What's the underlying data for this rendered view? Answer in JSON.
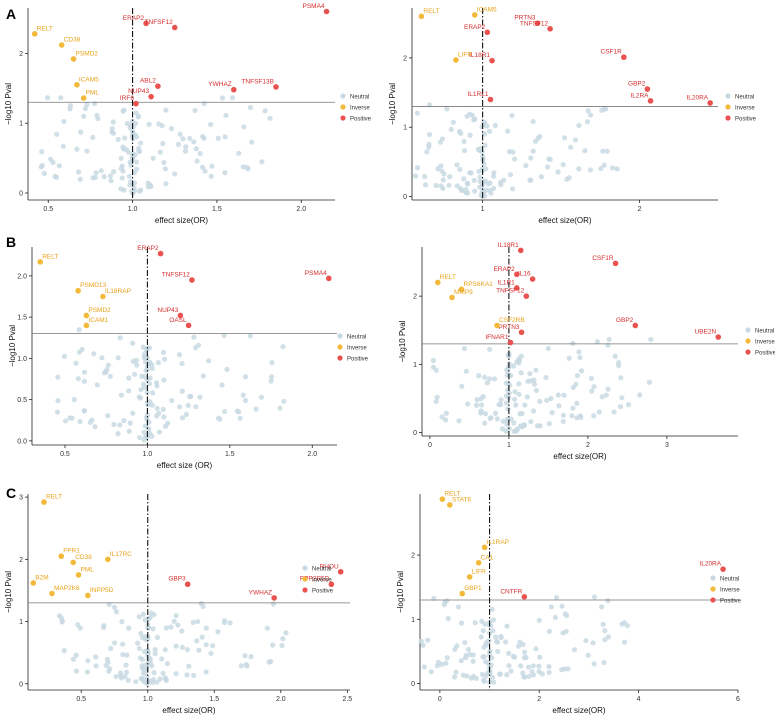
{
  "colors": {
    "neutral": "#c9d9e3",
    "inverse": "#f2b93b",
    "positive": "#e9524f",
    "inverse_label": "#e8a21a",
    "positive_label": "#d62d2d"
  },
  "panel_labels": [
    "A",
    "B",
    "C"
  ],
  "legend": {
    "neutral": "Neutral",
    "inverse": "Inverse",
    "positive": "Positive"
  },
  "chart_data": [
    {
      "type": "scatter",
      "id": "A-left",
      "panel": "A",
      "xlabel": "effect size(OR)",
      "ylabel": "−log10 Pval",
      "xlim": [
        0.38,
        2.2
      ],
      "ylim": [
        -0.1,
        2.65
      ],
      "xticks": [
        "0.5",
        "1.0",
        "1.5",
        "2.0"
      ],
      "xtick_values": [
        0.5,
        1.0,
        1.5,
        2.0
      ],
      "yticks": [
        "0",
        "1",
        "2"
      ],
      "ytick_values": [
        0,
        1,
        2
      ],
      "threshold_y": 1.3,
      "ref_x": 1.0,
      "points": [
        {
          "x": 2.15,
          "y": 2.6,
          "label": "PSMA4",
          "cls": "positive"
        },
        {
          "x": 1.08,
          "y": 2.43,
          "label": "ERAP2",
          "cls": "positive"
        },
        {
          "x": 1.25,
          "y": 2.37,
          "label": "TNFSF12",
          "cls": "positive"
        },
        {
          "x": 1.15,
          "y": 1.53,
          "label": "ABL2",
          "cls": "positive"
        },
        {
          "x": 1.6,
          "y": 1.48,
          "label": "YWHAZ",
          "cls": "positive"
        },
        {
          "x": 1.85,
          "y": 1.52,
          "label": "TNFSF13B",
          "cls": "positive"
        },
        {
          "x": 1.11,
          "y": 1.38,
          "label": "NUP43",
          "cls": "positive"
        },
        {
          "x": 1.02,
          "y": 1.28,
          "label": "IRF6",
          "cls": "positive"
        },
        {
          "x": 0.42,
          "y": 2.28,
          "label": "RELT",
          "cls": "inverse"
        },
        {
          "x": 0.58,
          "y": 2.12,
          "label": "CD38",
          "cls": "inverse"
        },
        {
          "x": 0.65,
          "y": 1.92,
          "label": "PSMD2",
          "cls": "inverse"
        },
        {
          "x": 0.67,
          "y": 1.55,
          "label": "ICAM5",
          "cls": "inverse"
        },
        {
          "x": 0.71,
          "y": 1.36,
          "label": "PML",
          "cls": "inverse"
        }
      ]
    },
    {
      "type": "scatter",
      "id": "A-right",
      "panel": "A",
      "xlabel": "effect size(OR)",
      "ylabel": "−log10 Pval",
      "xlim": [
        0.55,
        2.5
      ],
      "ylim": [
        -0.05,
        2.72
      ],
      "xticks": [
        "1",
        "2"
      ],
      "xtick_values": [
        1,
        2
      ],
      "yticks": [
        "0",
        "1",
        "2"
      ],
      "ytick_values": [
        0,
        1,
        2
      ],
      "threshold_y": 1.3,
      "ref_x": 1.0,
      "points": [
        {
          "x": 1.35,
          "y": 2.5,
          "label": "PRTN3",
          "cls": "positive"
        },
        {
          "x": 1.43,
          "y": 2.42,
          "label": "TNFSF12",
          "cls": "positive"
        },
        {
          "x": 1.03,
          "y": 2.37,
          "label": "ERAP2",
          "cls": "positive"
        },
        {
          "x": 1.06,
          "y": 1.96,
          "label": "IL18R1",
          "cls": "positive"
        },
        {
          "x": 1.9,
          "y": 2.01,
          "label": "CSF1R",
          "cls": "positive"
        },
        {
          "x": 1.05,
          "y": 1.4,
          "label": "IL1RL1",
          "cls": "positive"
        },
        {
          "x": 2.05,
          "y": 1.55,
          "label": "GBP2",
          "cls": "positive"
        },
        {
          "x": 2.07,
          "y": 1.38,
          "label": "IL2RA",
          "cls": "positive"
        },
        {
          "x": 2.45,
          "y": 1.35,
          "label": "IL20RA",
          "cls": "positive"
        },
        {
          "x": 0.61,
          "y": 2.6,
          "label": "RELT",
          "cls": "inverse"
        },
        {
          "x": 0.95,
          "y": 2.62,
          "label": "ICAM5",
          "cls": "inverse"
        },
        {
          "x": 0.83,
          "y": 1.97,
          "label": "LIFR",
          "cls": "inverse"
        }
      ]
    },
    {
      "type": "scatter",
      "id": "B-left",
      "panel": "B",
      "xlabel": "effect size (OR)",
      "ylabel": "−log10 Pval",
      "xlim": [
        0.3,
        2.15
      ],
      "ylim": [
        -0.05,
        2.35
      ],
      "xticks": [
        "0.5",
        "1.0",
        "1.5",
        "2.0"
      ],
      "xtick_values": [
        0.5,
        1.0,
        1.5,
        2.0
      ],
      "yticks": [
        "0.0",
        "0.5",
        "1.0",
        "1.5",
        "2.0"
      ],
      "ytick_values": [
        0,
        0.5,
        1.0,
        1.5,
        2.0
      ],
      "threshold_y": 1.3,
      "ref_x": 1.0,
      "points": [
        {
          "x": 1.08,
          "y": 2.27,
          "label": "ERAP2",
          "cls": "positive"
        },
        {
          "x": 1.27,
          "y": 1.95,
          "label": "TNFSF12",
          "cls": "positive"
        },
        {
          "x": 2.1,
          "y": 1.97,
          "label": "PSMA4",
          "cls": "positive"
        },
        {
          "x": 1.2,
          "y": 1.52,
          "label": "NUP43",
          "cls": "positive"
        },
        {
          "x": 1.25,
          "y": 1.4,
          "label": "OASL",
          "cls": "positive"
        },
        {
          "x": 0.35,
          "y": 2.17,
          "label": "RELT",
          "cls": "inverse"
        },
        {
          "x": 0.58,
          "y": 1.82,
          "label": "PSMD13",
          "cls": "inverse"
        },
        {
          "x": 0.73,
          "y": 1.75,
          "label": "IL18RAP",
          "cls": "inverse"
        },
        {
          "x": 0.63,
          "y": 1.52,
          "label": "PSMD2",
          "cls": "inverse"
        },
        {
          "x": 0.63,
          "y": 1.4,
          "label": "ICAM1",
          "cls": "inverse"
        }
      ]
    },
    {
      "type": "scatter",
      "id": "B-right",
      "panel": "B",
      "xlabel": "effect size(OR)",
      "ylabel": "−log10 Pval",
      "xlim": [
        -0.1,
        3.9
      ],
      "ylim": [
        -0.05,
        2.72
      ],
      "xticks": [
        "0",
        "1",
        "2",
        "3"
      ],
      "xtick_values": [
        0,
        1,
        2,
        3
      ],
      "yticks": [
        "0",
        "1",
        "2"
      ],
      "ytick_values": [
        0,
        1,
        2
      ],
      "threshold_y": 1.3,
      "ref_x": 1.0,
      "points": [
        {
          "x": 1.15,
          "y": 2.67,
          "label": "IL18R1",
          "cls": "positive"
        },
        {
          "x": 2.35,
          "y": 2.48,
          "label": "CSF1R",
          "cls": "positive"
        },
        {
          "x": 1.1,
          "y": 2.32,
          "label": "ERAP2",
          "cls": "positive"
        },
        {
          "x": 1.3,
          "y": 2.25,
          "label": "IL16",
          "cls": "positive"
        },
        {
          "x": 1.1,
          "y": 2.12,
          "label": "IL1R1",
          "cls": "positive"
        },
        {
          "x": 1.22,
          "y": 2.0,
          "label": "TNFSF12",
          "cls": "positive"
        },
        {
          "x": 2.6,
          "y": 1.57,
          "label": "GBP2",
          "cls": "positive"
        },
        {
          "x": 1.16,
          "y": 1.47,
          "label": "PRTN3",
          "cls": "positive"
        },
        {
          "x": 3.65,
          "y": 1.4,
          "label": "UBE2N",
          "cls": "positive"
        },
        {
          "x": 1.02,
          "y": 1.32,
          "label": "IFNAR1",
          "cls": "positive"
        },
        {
          "x": 0.1,
          "y": 2.2,
          "label": "RELT",
          "cls": "inverse"
        },
        {
          "x": 0.4,
          "y": 2.1,
          "label": "RPS6KA1",
          "cls": "inverse"
        },
        {
          "x": 0.28,
          "y": 1.98,
          "label": "MMP9",
          "cls": "inverse"
        },
        {
          "x": 0.85,
          "y": 1.57,
          "label": "CSF2RB",
          "cls": "inverse"
        }
      ]
    },
    {
      "type": "scatter",
      "id": "C-left",
      "panel": "C",
      "xlabel": "effect size(OR)",
      "ylabel": "−log10 Pval",
      "xlim": [
        0.1,
        2.52
      ],
      "ylim": [
        -0.1,
        3.05
      ],
      "xticks": [
        "0.5",
        "1.0",
        "1.5",
        "2.0",
        "2.5"
      ],
      "xtick_values": [
        0.5,
        1.0,
        1.5,
        2.0,
        2.5
      ],
      "yticks": [
        "0",
        "1",
        "2",
        "3"
      ],
      "ytick_values": [
        0,
        1,
        2,
        3
      ],
      "threshold_y": 1.3,
      "ref_x": 1.0,
      "points": [
        {
          "x": 1.3,
          "y": 1.6,
          "label": "GBP3",
          "cls": "positive"
        },
        {
          "x": 1.95,
          "y": 1.38,
          "label": "YWHAZ",
          "cls": "positive"
        },
        {
          "x": 2.45,
          "y": 1.8,
          "label": "RHOU",
          "cls": "positive"
        },
        {
          "x": 2.38,
          "y": 1.6,
          "label": "PPP2R5D",
          "cls": "positive"
        },
        {
          "x": 0.22,
          "y": 2.92,
          "label": "RELT",
          "cls": "inverse"
        },
        {
          "x": 0.35,
          "y": 2.05,
          "label": "FPR1",
          "cls": "inverse"
        },
        {
          "x": 0.7,
          "y": 2.0,
          "label": "IL17RC",
          "cls": "inverse"
        },
        {
          "x": 0.44,
          "y": 1.95,
          "label": "CD38",
          "cls": "inverse"
        },
        {
          "x": 0.48,
          "y": 1.75,
          "label": "PML",
          "cls": "inverse"
        },
        {
          "x": 0.14,
          "y": 1.62,
          "label": "B2M",
          "cls": "inverse"
        },
        {
          "x": 0.55,
          "y": 1.42,
          "label": "INPP5D",
          "cls": "inverse"
        },
        {
          "x": 0.28,
          "y": 1.45,
          "label": "MAP2K6",
          "cls": "inverse"
        }
      ]
    },
    {
      "type": "scatter",
      "id": "C-right",
      "panel": "C",
      "xlabel": "effect size(OR)",
      "ylabel": "−log10 Pval",
      "xlim": [
        -0.4,
        6.0
      ],
      "ylim": [
        -0.1,
        2.95
      ],
      "xticks": [
        "0",
        "2",
        "4",
        "6"
      ],
      "xtick_values": [
        0,
        2,
        4,
        6
      ],
      "yticks": [
        "0",
        "1",
        "2"
      ],
      "ytick_values": [
        0,
        1,
        2
      ],
      "threshold_y": 1.3,
      "ref_x": 1.0,
      "points": [
        {
          "x": 5.7,
          "y": 1.78,
          "label": "IL20RA",
          "cls": "positive"
        },
        {
          "x": 1.7,
          "y": 1.35,
          "label": "CNTFR",
          "cls": "positive"
        },
        {
          "x": 0.05,
          "y": 2.87,
          "label": "RELT",
          "cls": "inverse"
        },
        {
          "x": 0.2,
          "y": 2.78,
          "label": "STAT6",
          "cls": "inverse"
        },
        {
          "x": 0.9,
          "y": 2.12,
          "label": "IL1RAP",
          "cls": "inverse"
        },
        {
          "x": 0.78,
          "y": 1.88,
          "label": "CA1",
          "cls": "inverse"
        },
        {
          "x": 0.6,
          "y": 1.66,
          "label": "LIFR",
          "cls": "inverse"
        },
        {
          "x": 0.45,
          "y": 1.4,
          "label": "GBP1",
          "cls": "inverse"
        }
      ]
    }
  ]
}
